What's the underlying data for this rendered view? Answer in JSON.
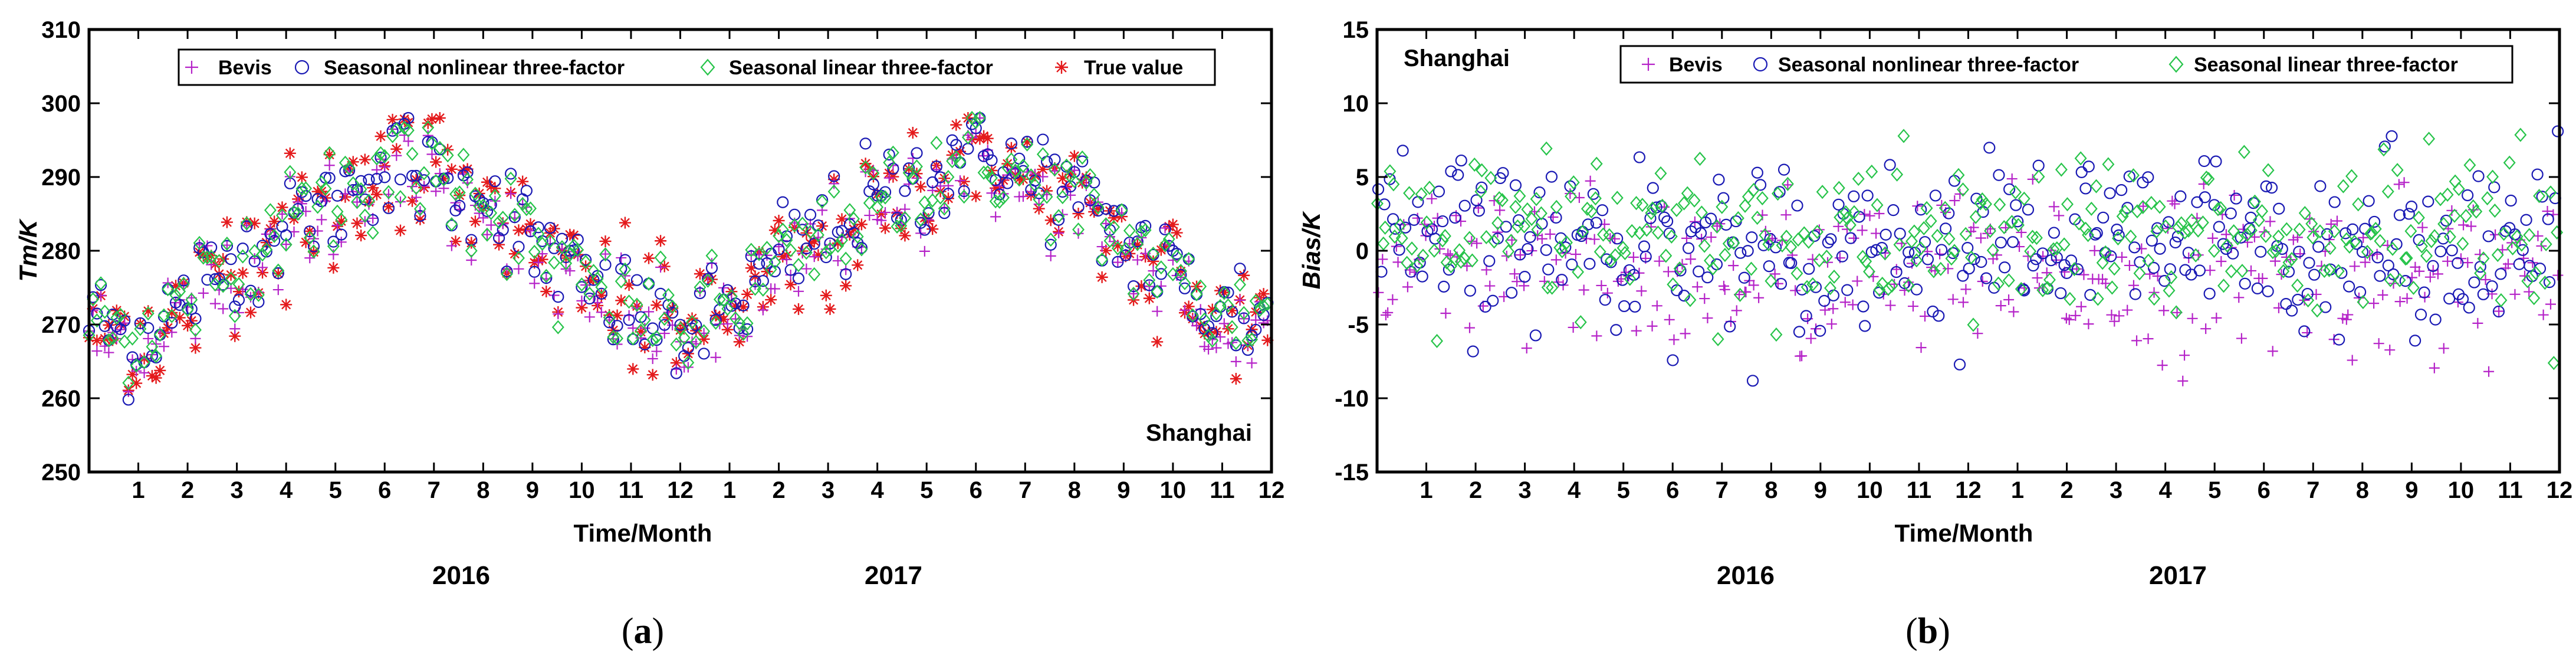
{
  "colors": {
    "bevis": "#b522c8",
    "nonlinear": "#1a1ab4",
    "linear": "#27c44a",
    "true": "#e41a1c"
  },
  "chart_data": [
    {
      "type": "scatter",
      "panel": "a",
      "panel_label_open": "(",
      "panel_label_letter": "a",
      "panel_label_close": ")",
      "ylabel": "Tm/K",
      "xlabel": "Time/Month",
      "ylim": [
        250,
        310
      ],
      "yticks": [
        250,
        260,
        270,
        280,
        290,
        300,
        310
      ],
      "xticks": [
        "1",
        "2",
        "3",
        "4",
        "5",
        "6",
        "7",
        "8",
        "9",
        "10",
        "11",
        "12",
        "1",
        "2",
        "3",
        "4",
        "5",
        "6",
        "7",
        "8",
        "9",
        "10",
        "11",
        "12"
      ],
      "years": [
        "2016",
        "2017"
      ],
      "annotation": "Shanghai",
      "annotation_position": "bottom-right",
      "legend_position": "top",
      "series": [
        {
          "name": "Bevis",
          "marker": "plus",
          "color_key": "bevis"
        },
        {
          "name": "Seasonal nonlinear three-factor",
          "marker": "circle",
          "color_key": "nonlinear"
        },
        {
          "name": "Seasonal linear three-factor",
          "marker": "diamond",
          "color_key": "linear"
        },
        {
          "name": "True value",
          "marker": "star",
          "color_key": "true"
        }
      ],
      "monthly_mean_tm": [
        270,
        268,
        273,
        279,
        283,
        287,
        292,
        290,
        288,
        281,
        275,
        272,
        269,
        272,
        277,
        282,
        286,
        290,
        293,
        290,
        287,
        281,
        276,
        271
      ]
    },
    {
      "type": "scatter",
      "panel": "b",
      "panel_label_open": "(",
      "panel_label_letter": "b",
      "panel_label_close": ")",
      "ylabel": "Bias/K",
      "xlabel": "Time/Month",
      "ylim": [
        -15,
        15
      ],
      "yticks": [
        -15,
        -10,
        -5,
        0,
        5,
        10,
        15
      ],
      "xticks": [
        "1",
        "2",
        "3",
        "4",
        "5",
        "6",
        "7",
        "8",
        "9",
        "10",
        "11",
        "12",
        "1",
        "2",
        "3",
        "4",
        "5",
        "6",
        "7",
        "8",
        "9",
        "10",
        "11",
        "12"
      ],
      "years": [
        "2016",
        "2017"
      ],
      "annotation": "Shanghai",
      "annotation_position": "top-left",
      "legend_position": "top",
      "series": [
        {
          "name": "Bevis",
          "marker": "plus",
          "color_key": "bevis",
          "mean_bias": -1.5
        },
        {
          "name": "Seasonal nonlinear three-factor",
          "marker": "circle",
          "color_key": "nonlinear",
          "mean_bias": 0.5
        },
        {
          "name": "Seasonal linear three-factor",
          "marker": "diamond",
          "color_key": "linear",
          "mean_bias": 0.8
        }
      ]
    }
  ]
}
